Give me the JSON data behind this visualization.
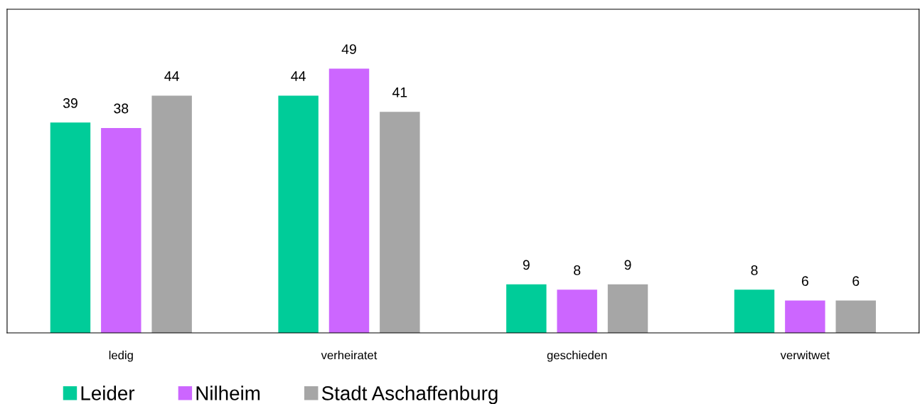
{
  "chart_data": {
    "type": "bar",
    "categories": [
      "ledig",
      "verheiratet",
      "geschieden",
      "verwitwet"
    ],
    "series": [
      {
        "name": "Leider",
        "color": "#00cc99",
        "values": [
          39,
          44,
          9,
          8
        ]
      },
      {
        "name": "Nilheim",
        "color": "#cc66ff",
        "values": [
          38,
          49,
          8,
          6
        ]
      },
      {
        "name": "Stadt Aschaffenburg",
        "color": "#a6a6a6",
        "values": [
          44,
          41,
          9,
          6
        ]
      }
    ],
    "ylim": [
      0,
      60
    ],
    "data_labels": true,
    "legend": "bottom left",
    "grid": false,
    "tick_labels": "x"
  }
}
